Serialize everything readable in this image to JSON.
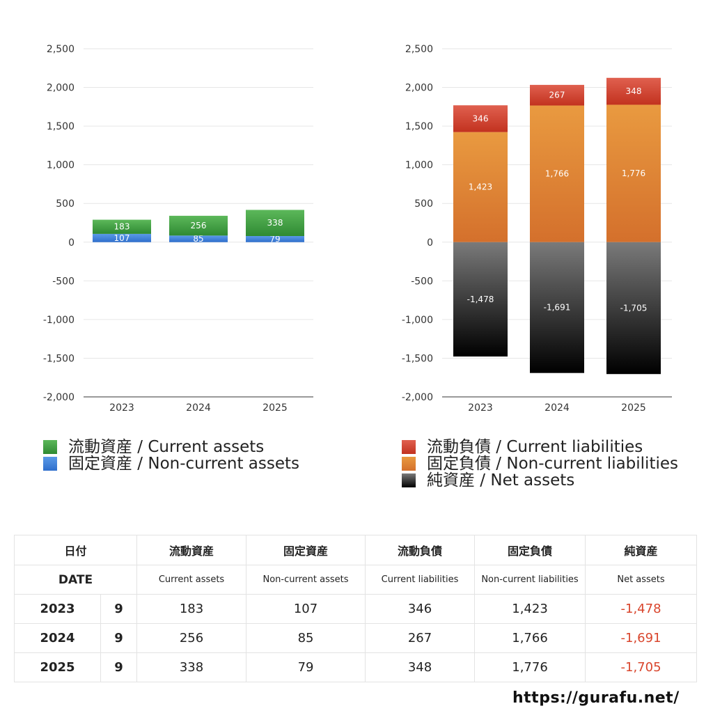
{
  "colors": {
    "current_assets": "#3fa043",
    "non_current_assets": "#3a7fd9",
    "current_liabilities": "#cc3a2a",
    "non_current_liabilities": "#e08a35",
    "net_assets": "#222222",
    "negative_text": "#d9452c",
    "grid": "#e6e6e6"
  },
  "chart_data": [
    {
      "type": "bar",
      "stacked": true,
      "categories": [
        "2023",
        "2024",
        "2025"
      ],
      "ylim": [
        -2000,
        2500
      ],
      "yticks": [
        "2,500",
        "2,000",
        "1,500",
        "1,000",
        "500",
        "0",
        "-500",
        "-1,000",
        "-1,500",
        "-2,000"
      ],
      "grid": true,
      "legend_position": "bottom",
      "series": [
        {
          "name": "固定資産 / Non-current assets",
          "key": "non_current_assets",
          "values": [
            107,
            85,
            79
          ],
          "labels": [
            "107",
            "85",
            "79"
          ]
        },
        {
          "name": "流動資産 / Current assets",
          "key": "current_assets",
          "values": [
            183,
            256,
            338
          ],
          "labels": [
            "183",
            "256",
            "338"
          ]
        }
      ],
      "legend": [
        "流動資産 / Current assets",
        "固定資産 / Non-current assets"
      ]
    },
    {
      "type": "bar",
      "stacked": true,
      "categories": [
        "2023",
        "2024",
        "2025"
      ],
      "ylim": [
        -2000,
        2500
      ],
      "yticks": [
        "2,500",
        "2,000",
        "1,500",
        "1,000",
        "500",
        "0",
        "-500",
        "-1,000",
        "-1,500",
        "-2,000"
      ],
      "grid": true,
      "legend_position": "bottom",
      "series": [
        {
          "name": "固定負債 / Non-current liabilities",
          "key": "non_current_liabilities",
          "values": [
            1423,
            1766,
            1776
          ],
          "labels": [
            "1,423",
            "1,766",
            "1,776"
          ]
        },
        {
          "name": "流動負債 / Current liabilities",
          "key": "current_liabilities",
          "values": [
            346,
            267,
            348
          ],
          "labels": [
            "346",
            "267",
            "348"
          ]
        },
        {
          "name": "純資産 / Net assets",
          "key": "net_assets",
          "values": [
            -1478,
            -1691,
            -1705
          ],
          "labels": [
            "-1,478",
            "-1,691",
            "-1,705"
          ]
        }
      ],
      "legend": [
        "流動負債 / Current liabilities",
        "固定負債 / Non-current liabilities",
        "純資産 / Net assets"
      ]
    }
  ],
  "table": {
    "headers_jp": [
      "日付",
      "流動資産",
      "固定資産",
      "流動負債",
      "固定負債",
      "純資産"
    ],
    "headers_en": [
      "DATE",
      "Current assets",
      "Non-current assets",
      "Current liabilities",
      "Non-current liabilities",
      "Net assets"
    ],
    "rows": [
      {
        "year": "2023",
        "month": "9",
        "values": [
          "183",
          "107",
          "346",
          "1,423",
          "-1,478"
        ]
      },
      {
        "year": "2024",
        "month": "9",
        "values": [
          "256",
          "85",
          "267",
          "1,766",
          "-1,691"
        ]
      },
      {
        "year": "2025",
        "month": "9",
        "values": [
          "338",
          "79",
          "348",
          "1,776",
          "-1,705"
        ]
      }
    ]
  },
  "footer": {
    "url": "https://gurafu.net/"
  }
}
